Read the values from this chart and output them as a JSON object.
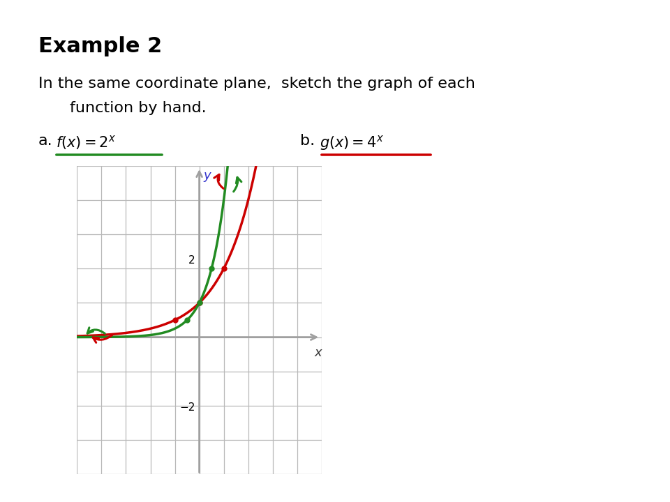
{
  "title": "Example 2",
  "subtitle_line1": "In the same coordinate plane,  sketch the graph of each",
  "subtitle_line2": "function by hand.",
  "background_color": "#ffffff",
  "axis_color": "#a0a0a0",
  "red_color": "#cc0000",
  "green_color": "#228B22",
  "blue_color": "#3333cc",
  "text_color": "#000000",
  "xlim": [
    -5,
    5
  ],
  "ylim": [
    -4,
    5
  ],
  "label_2": "2",
  "label_minus2": "−2",
  "fig_width": 9.6,
  "fig_height": 7.2,
  "dpi": 100
}
